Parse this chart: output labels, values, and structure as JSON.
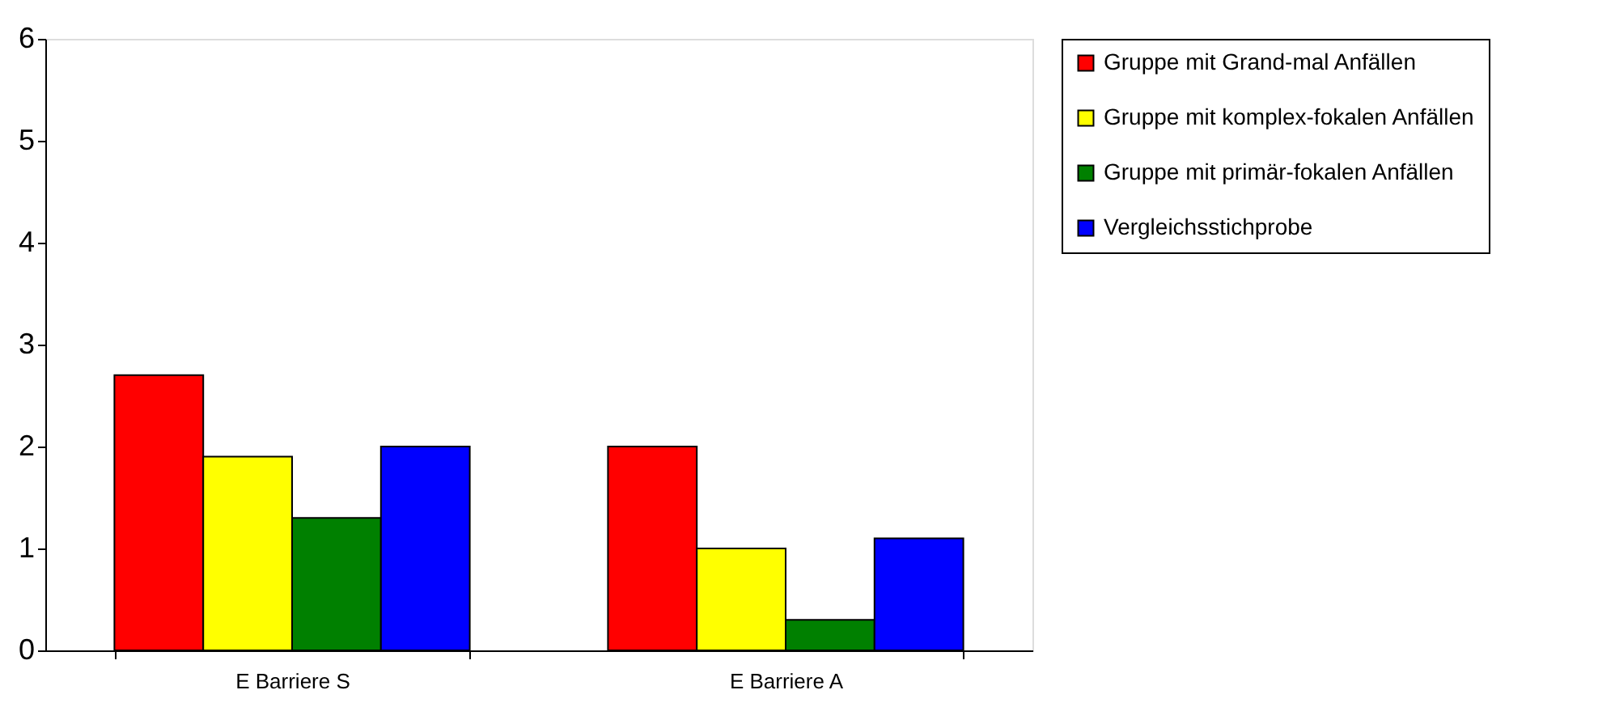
{
  "chart_data": {
    "type": "bar",
    "categories": [
      "E Barriere S",
      "E Barriere A"
    ],
    "series": [
      {
        "name": "Gruppe mit Grand-mal Anfällen",
        "color": "#ff0000",
        "values": [
          2.7,
          2.0
        ]
      },
      {
        "name": "Gruppe mit komplex-fokalen Anfällen",
        "color": "#ffff00",
        "values": [
          1.9,
          1.0
        ]
      },
      {
        "name": "Gruppe mit primär-fokalen Anfällen",
        "color": "#008000",
        "values": [
          1.3,
          0.3
        ]
      },
      {
        "name": "Vergleichsstichprobe",
        "color": "#0000ff",
        "values": [
          2.0,
          1.1
        ]
      }
    ],
    "ylim": [
      0,
      6
    ],
    "yticks": [
      0,
      1,
      2,
      3,
      4,
      5,
      6
    ],
    "grid": false,
    "legend": "right"
  }
}
